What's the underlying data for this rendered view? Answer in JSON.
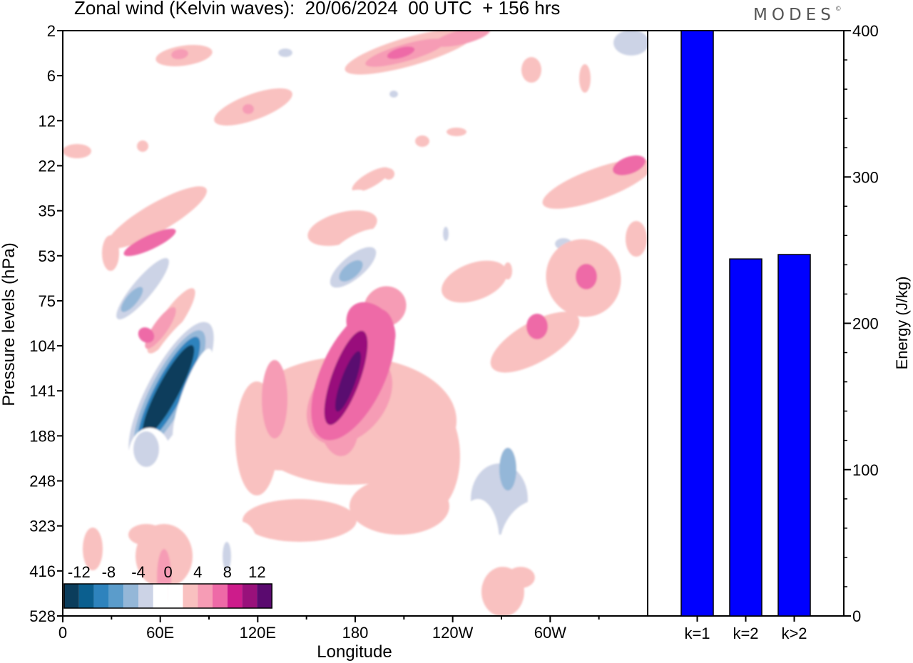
{
  "title": "Zonal wind (Kelvin waves):  20/06/2024  00 UTC  + 156 hrs",
  "logo_text": "MODES",
  "logo_mark": "©",
  "chart_data": [
    {
      "type": "heatmap",
      "xlabel": "Longitude",
      "ylabel": "Pressure levels (hPa)",
      "x_ticks": [
        "0",
        "60E",
        "120E",
        "180",
        "120W",
        "60W"
      ],
      "y_ticks": [
        "2",
        "6",
        "12",
        "22",
        "35",
        "53",
        "75",
        "104",
        "141",
        "188",
        "248",
        "323",
        "416",
        "528"
      ],
      "colorbar": {
        "labels": [
          "-12",
          "-8",
          "-4",
          "0",
          "4",
          "8",
          "12"
        ],
        "levels": [
          -14,
          -12,
          -10,
          -8,
          -6,
          -4,
          -2,
          0,
          2,
          4,
          6,
          8,
          10,
          12,
          14
        ],
        "colors": [
          "#0b3d5c",
          "#0b5f8f",
          "#2e83bd",
          "#5b9ccb",
          "#94b7d8",
          "#ccd3e6",
          "#ffffff",
          "#ffffff",
          "#f9c1c0",
          "#f69cb5",
          "#ee6aa7",
          "#cd1c8b",
          "#99117b",
          "#5a0a6f"
        ]
      },
      "features": [
        {
          "lon": 55,
          "lev": "141",
          "value": -14
        },
        {
          "lon": 45,
          "lev": "75",
          "value": -6
        },
        {
          "lon": 170,
          "lev": "141",
          "value": 10
        },
        {
          "lon": 165,
          "lev": "75",
          "value": -6
        },
        {
          "lon": 260,
          "lev": "188",
          "value": -6
        },
        {
          "lon": 305,
          "lev": "75",
          "value": 6
        },
        {
          "lon": 40,
          "lev": "104",
          "value": 6
        },
        {
          "lon": 190,
          "lev": "6",
          "value": 6
        },
        {
          "lon": 340,
          "lev": "22",
          "value": 6
        },
        {
          "lon": 45,
          "lev": "416",
          "value": 4
        }
      ]
    },
    {
      "type": "bar",
      "categories": [
        "k=1",
        "k=2",
        "k>2"
      ],
      "values": [
        400,
        244,
        247
      ],
      "ylabel": "Energy (J/kg)",
      "ylim": [
        0,
        400
      ],
      "y_ticks": [
        "0",
        "100",
        "200",
        "300",
        "400"
      ],
      "bar_color": "#0000ff"
    }
  ]
}
